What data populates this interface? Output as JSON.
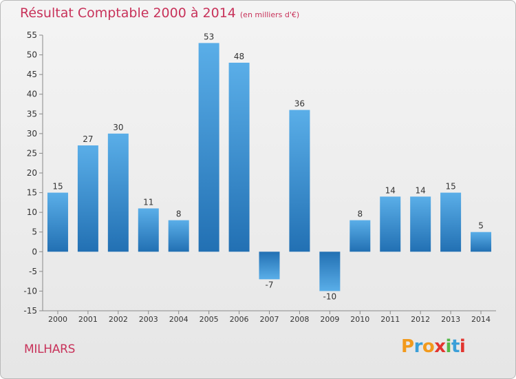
{
  "header": {
    "title": "Résultat Comptable 2000 à 2014",
    "unit": "(en milliers d'€)"
  },
  "footer": {
    "commune": "MILHARS",
    "logo_letters": [
      "P",
      "r",
      "o",
      "x",
      "i",
      "t",
      "i"
    ],
    "logo_colors": [
      "#f29a1c",
      "#3b9fd8",
      "#f29a1c",
      "#e2352f",
      "#54b848",
      "#3b9fd8",
      "#e2352f"
    ]
  },
  "colors": {
    "title": "#c8325a",
    "bar_light": "#5aaee8",
    "bar_dark": "#2270b3"
  },
  "chart_data": {
    "type": "bar",
    "title": "Résultat Comptable 2000 à 2014",
    "xlabel": "",
    "ylabel": "",
    "categories": [
      "2000",
      "2001",
      "2002",
      "2003",
      "2004",
      "2005",
      "2006",
      "2007",
      "2008",
      "2009",
      "2010",
      "2011",
      "2012",
      "2013",
      "2014"
    ],
    "values": [
      15,
      27,
      30,
      11,
      8,
      53,
      48,
      -7,
      36,
      -10,
      8,
      14,
      14,
      15,
      5
    ],
    "ylim": [
      -15,
      55
    ],
    "yticks": [
      -15,
      -10,
      -5,
      0,
      5,
      10,
      15,
      20,
      25,
      30,
      35,
      40,
      45,
      50,
      55
    ],
    "grid": false
  }
}
